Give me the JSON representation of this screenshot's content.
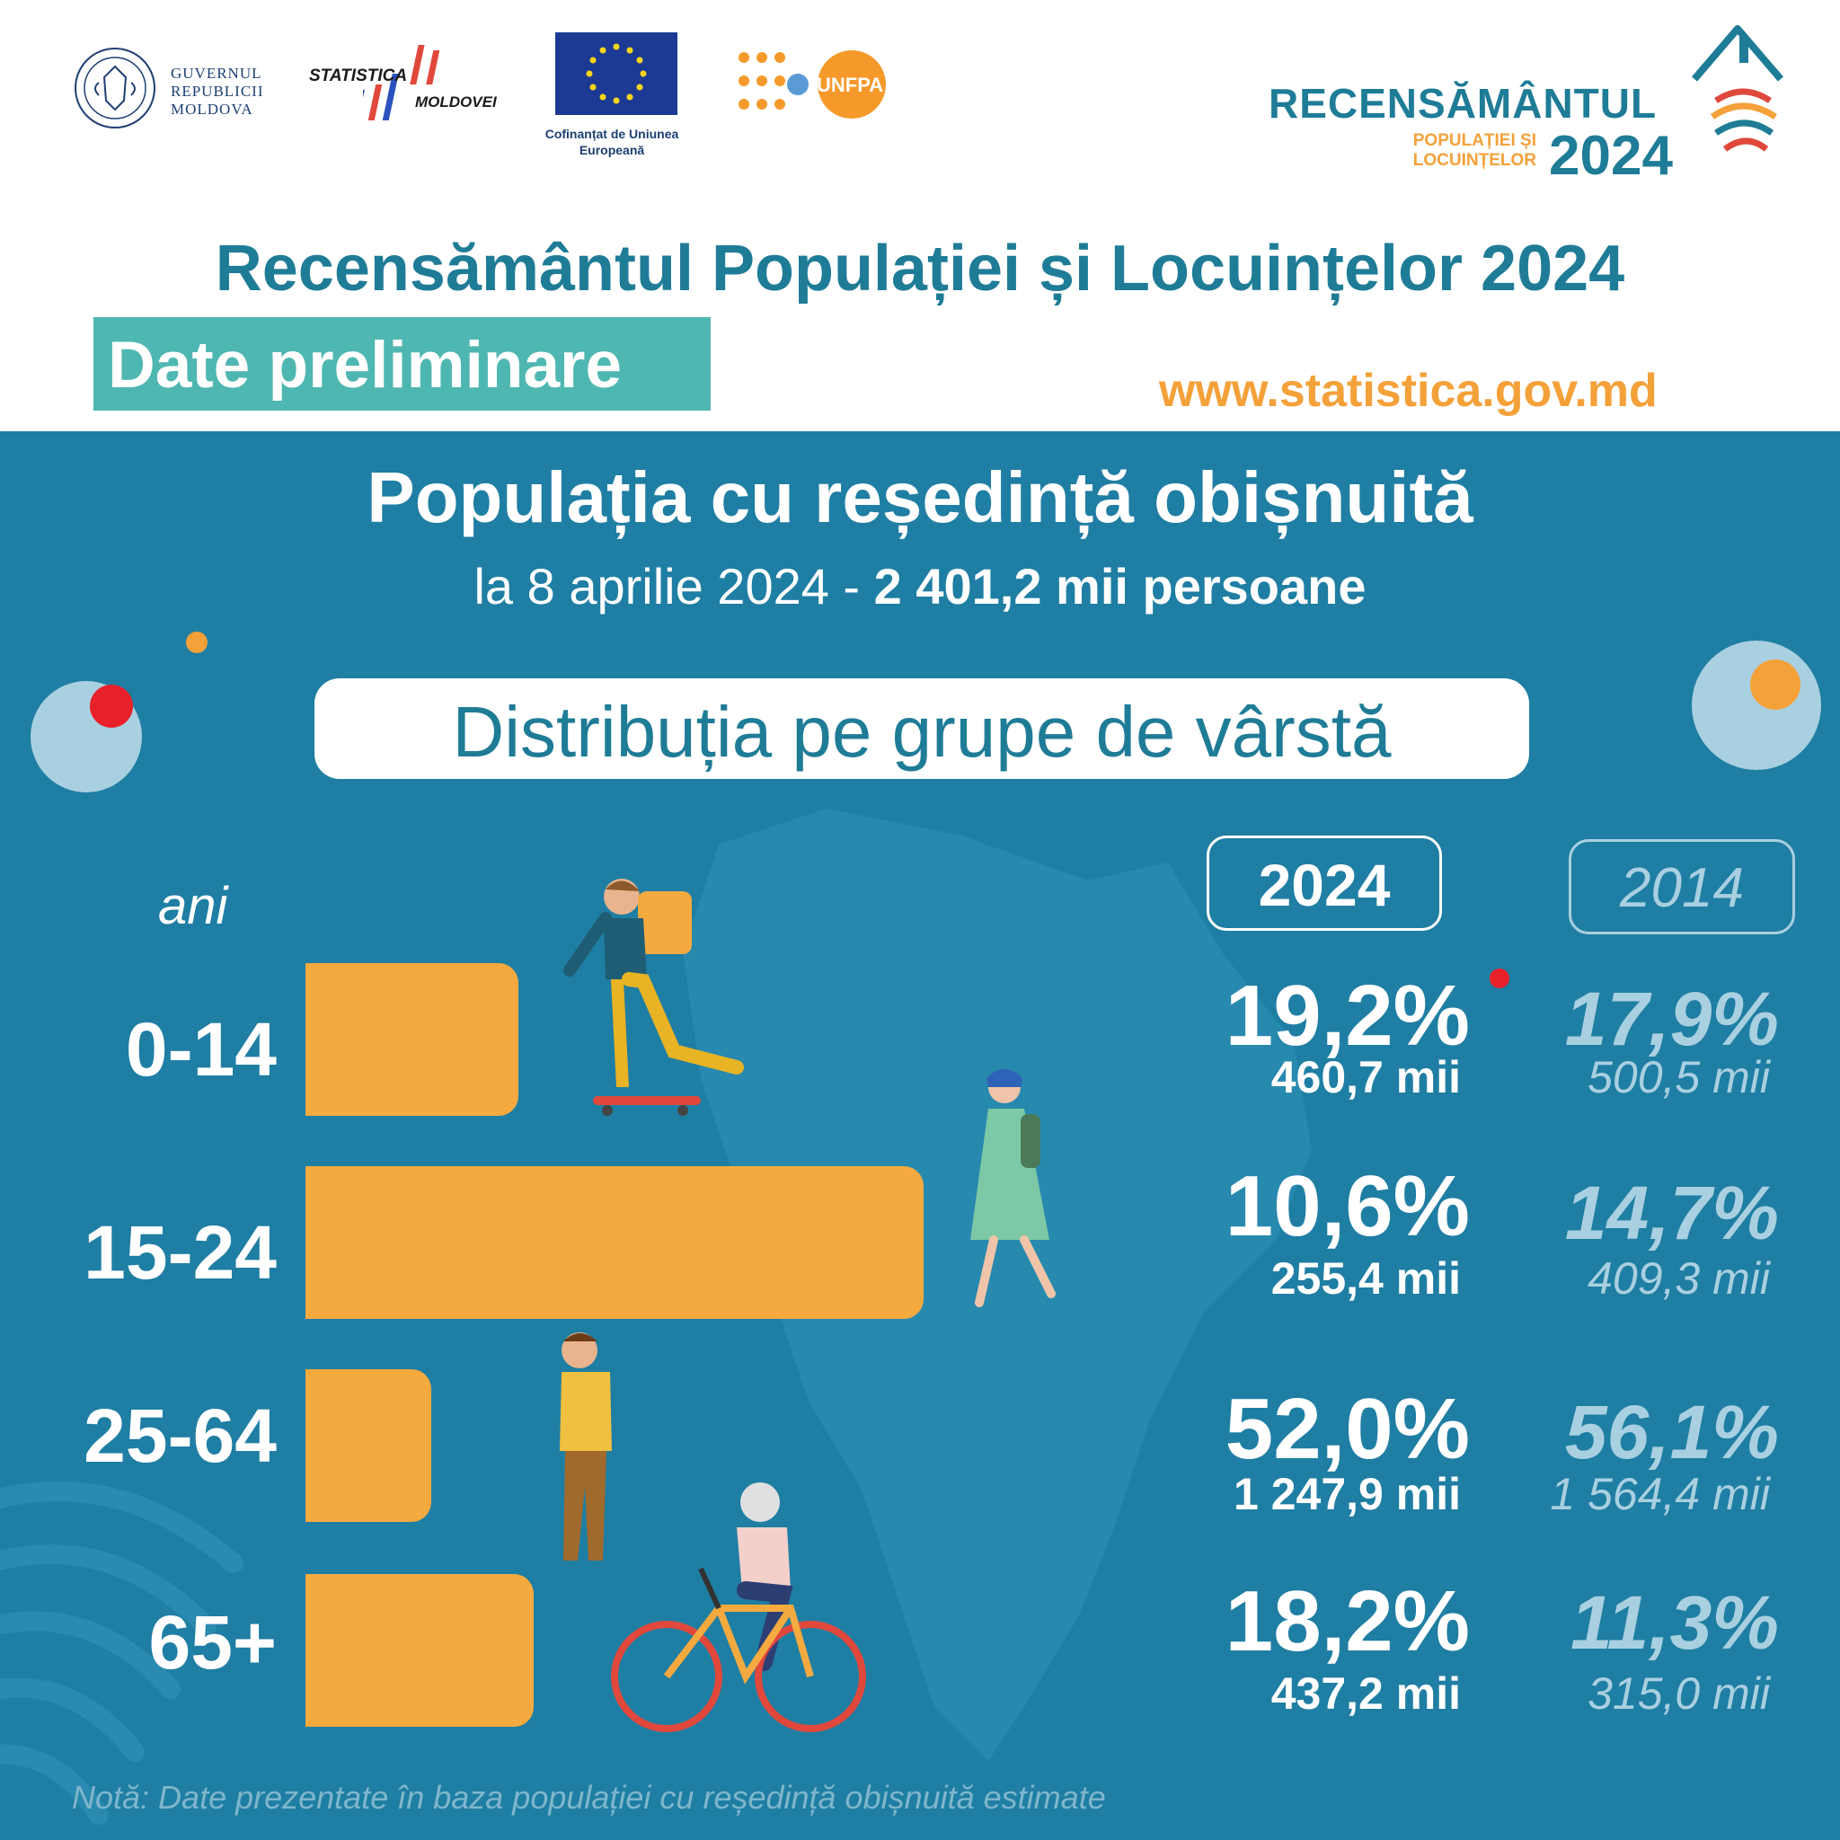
{
  "header": {
    "gov_logo_text": "GUVERNUL REPUBLICII MOLDOVA",
    "stat_logo_line1": "STATISTICA",
    "stat_logo_line2": "MOLDOVEI",
    "eu_text": "Cofinanțat de Uniunea Europeană",
    "unfpa_text": "UNFPA",
    "census_logo_line1": "RECENSĂMÂNTUL",
    "census_logo_line2": "POPULAȚIEI ȘI LOCUINȚELOR",
    "census_logo_year": "2024",
    "title": "Recensământul Populației și Locuințelor 2024",
    "badge": "Date preliminare",
    "website": "www.statistica.gov.md"
  },
  "summary": {
    "title": "Populația cu reședință obișnuită",
    "date_text": "la 8 aprilie 2024 - ",
    "total_text": "2 401,2 mii persoane"
  },
  "section_title": "Distribuția pe grupe de vârstă",
  "colors": {
    "header_title": "#1f7c97",
    "panel_bg": "#1f7ea3",
    "bar": "#f5aa40",
    "badge": "#4fb7b1",
    "website": "#f4a13a",
    "muted": "#a9d0e0"
  },
  "chart_data": {
    "type": "bar",
    "orientation": "horizontal",
    "unit_label": "ani",
    "categories": [
      "0-14",
      "15-24",
      "25-64",
      "65+"
    ],
    "series": [
      {
        "name": "2024",
        "values_percent": [
          19.2,
          10.6,
          52.0,
          18.2
        ],
        "percent_labels": [
          "19,2%",
          "10,6%",
          "52,0%",
          "18,2%"
        ],
        "count_labels": [
          "460,7 mii",
          "255,4 mii",
          "1 247,9 mii",
          "437,2 mii"
        ]
      },
      {
        "name": "2014",
        "values_percent": [
          17.9,
          14.7,
          56.1,
          11.3
        ],
        "percent_labels": [
          "17,9%",
          "14,7%",
          "56,1%",
          "11,3%"
        ],
        "count_labels": [
          "500,5 mii",
          "409,3 mii",
          "1 564,4 mii",
          "315,0 mii"
        ]
      }
    ],
    "bar_relative_lengths": [
      0.3447,
      1.0,
      0.2032,
      0.3689
    ]
  },
  "note": "Notă: Date prezentate în baza populației cu reședință obișnuită estimate"
}
